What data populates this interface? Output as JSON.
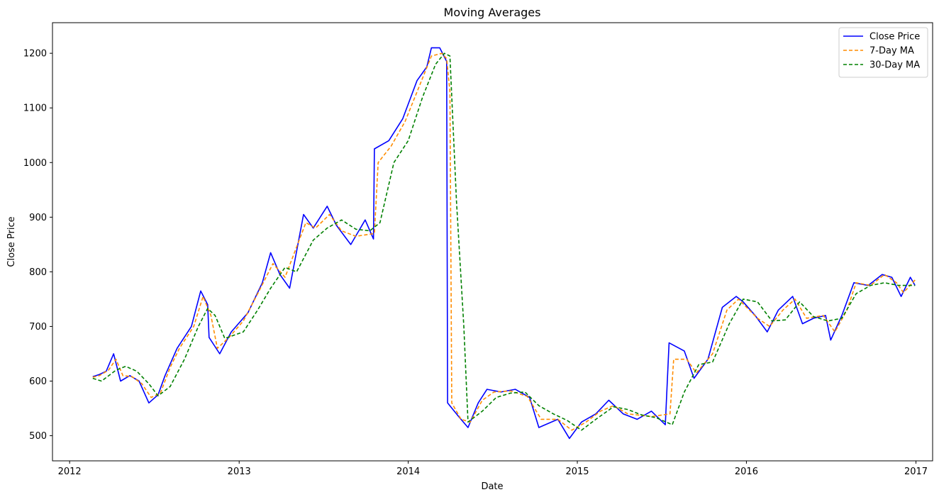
{
  "chart_data": {
    "type": "line",
    "title": "Moving Averages",
    "xlabel": "Date",
    "ylabel": "Close Price",
    "xlim": [
      "2011-11-25",
      "2017-02-06"
    ],
    "ylim": [
      454,
      1256
    ],
    "x_ticks": [
      "2012",
      "2013",
      "2014",
      "2015",
      "2016",
      "2017"
    ],
    "y_ticks": [
      500,
      600,
      700,
      800,
      900,
      1000,
      1100,
      1200
    ],
    "grid": false,
    "legend_position": "top-right",
    "series": [
      {
        "name": "Close Price",
        "color": "#0000ff",
        "style": "solid",
        "points": [
          [
            "2012-02-20",
            608
          ],
          [
            "2012-03-05",
            612
          ],
          [
            "2012-03-20",
            618
          ],
          [
            "2012-04-05",
            650
          ],
          [
            "2012-04-20",
            600
          ],
          [
            "2012-05-10",
            610
          ],
          [
            "2012-05-30",
            600
          ],
          [
            "2012-06-20",
            560
          ],
          [
            "2012-07-10",
            575
          ],
          [
            "2012-07-25",
            610
          ],
          [
            "2012-08-20",
            660
          ],
          [
            "2012-09-20",
            700
          ],
          [
            "2012-10-10",
            765
          ],
          [
            "2012-10-25",
            740
          ],
          [
            "2012-10-28",
            680
          ],
          [
            "2012-11-20",
            650
          ],
          [
            "2012-12-15",
            690
          ],
          [
            "2013-01-20",
            725
          ],
          [
            "2013-02-20",
            780
          ],
          [
            "2013-03-10",
            835
          ],
          [
            "2013-03-30",
            795
          ],
          [
            "2013-04-20",
            770
          ],
          [
            "2013-05-20",
            905
          ],
          [
            "2013-06-10",
            880
          ],
          [
            "2013-07-10",
            920
          ],
          [
            "2013-07-30",
            885
          ],
          [
            "2013-08-30",
            850
          ],
          [
            "2013-09-30",
            895
          ],
          [
            "2013-10-18",
            860
          ],
          [
            "2013-10-20",
            1025
          ],
          [
            "2013-11-20",
            1040
          ],
          [
            "2013-12-20",
            1080
          ],
          [
            "2014-01-20",
            1150
          ],
          [
            "2014-02-10",
            1175
          ],
          [
            "2014-02-20",
            1210
          ],
          [
            "2014-03-10",
            1210
          ],
          [
            "2014-03-25",
            1185
          ],
          [
            "2014-03-27",
            560
          ],
          [
            "2014-04-20",
            535
          ],
          [
            "2014-05-10",
            515
          ],
          [
            "2014-06-01",
            560
          ],
          [
            "2014-06-20",
            585
          ],
          [
            "2014-07-20",
            580
          ],
          [
            "2014-08-20",
            585
          ],
          [
            "2014-09-20",
            570
          ],
          [
            "2014-10-10",
            515
          ],
          [
            "2014-11-20",
            530
          ],
          [
            "2014-12-15",
            495
          ],
          [
            "2015-01-10",
            525
          ],
          [
            "2015-02-10",
            540
          ],
          [
            "2015-03-10",
            565
          ],
          [
            "2015-04-10",
            540
          ],
          [
            "2015-05-10",
            530
          ],
          [
            "2015-06-10",
            545
          ],
          [
            "2015-07-10",
            520
          ],
          [
            "2015-07-18",
            670
          ],
          [
            "2015-08-20",
            655
          ],
          [
            "2015-09-10",
            605
          ],
          [
            "2015-10-10",
            640
          ],
          [
            "2015-11-10",
            735
          ],
          [
            "2015-12-10",
            755
          ],
          [
            "2015-12-25",
            745
          ],
          [
            "2016-01-20",
            720
          ],
          [
            "2016-02-15",
            690
          ],
          [
            "2016-03-10",
            730
          ],
          [
            "2016-04-10",
            755
          ],
          [
            "2016-05-01",
            705
          ],
          [
            "2016-05-25",
            715
          ],
          [
            "2016-06-20",
            720
          ],
          [
            "2016-07-01",
            675
          ],
          [
            "2016-07-25",
            720
          ],
          [
            "2016-08-20",
            780
          ],
          [
            "2016-09-20",
            775
          ],
          [
            "2016-10-20",
            795
          ],
          [
            "2016-11-10",
            790
          ],
          [
            "2016-11-30",
            755
          ],
          [
            "2016-12-20",
            790
          ],
          [
            "2016-12-30",
            775
          ]
        ]
      },
      {
        "name": "7-Day MA",
        "color": "#ff8c00",
        "style": "dashed",
        "points": [
          [
            "2012-02-20",
            607
          ],
          [
            "2012-03-05",
            610
          ],
          [
            "2012-03-25",
            620
          ],
          [
            "2012-04-10",
            640
          ],
          [
            "2012-04-25",
            610
          ],
          [
            "2012-05-15",
            608
          ],
          [
            "2012-06-05",
            595
          ],
          [
            "2012-06-25",
            570
          ],
          [
            "2012-07-15",
            578
          ],
          [
            "2012-08-05",
            625
          ],
          [
            "2012-08-25",
            660
          ],
          [
            "2012-09-25",
            700
          ],
          [
            "2012-10-15",
            755
          ],
          [
            "2012-11-01",
            720
          ],
          [
            "2012-11-15",
            660
          ],
          [
            "2012-12-10",
            680
          ],
          [
            "2013-01-10",
            710
          ],
          [
            "2013-02-10",
            760
          ],
          [
            "2013-03-15",
            815
          ],
          [
            "2013-04-10",
            790
          ],
          [
            "2013-05-25",
            890
          ],
          [
            "2013-06-15",
            880
          ],
          [
            "2013-07-15",
            905
          ],
          [
            "2013-08-10",
            875
          ],
          [
            "2013-09-10",
            865
          ],
          [
            "2013-10-20",
            870
          ],
          [
            "2013-10-28",
            1000
          ],
          [
            "2013-11-25",
            1030
          ],
          [
            "2013-12-25",
            1075
          ],
          [
            "2014-01-25",
            1140
          ],
          [
            "2014-02-20",
            1195
          ],
          [
            "2014-03-15",
            1200
          ],
          [
            "2014-03-25",
            1190
          ],
          [
            "2014-04-01",
            1130
          ],
          [
            "2014-04-05",
            560
          ],
          [
            "2014-04-25",
            530
          ],
          [
            "2014-05-15",
            525
          ],
          [
            "2014-06-10",
            565
          ],
          [
            "2014-07-05",
            580
          ],
          [
            "2014-08-10",
            582
          ],
          [
            "2014-09-15",
            572
          ],
          [
            "2014-10-15",
            530
          ],
          [
            "2014-11-20",
            530
          ],
          [
            "2014-12-20",
            510
          ],
          [
            "2015-01-20",
            525
          ],
          [
            "2015-02-20",
            545
          ],
          [
            "2015-03-20",
            555
          ],
          [
            "2015-04-20",
            540
          ],
          [
            "2015-06-10",
            535
          ],
          [
            "2015-07-20",
            540
          ],
          [
            "2015-07-28",
            640
          ],
          [
            "2015-08-25",
            640
          ],
          [
            "2015-09-15",
            615
          ],
          [
            "2015-10-20",
            650
          ],
          [
            "2015-11-20",
            730
          ],
          [
            "2015-12-15",
            750
          ],
          [
            "2016-01-25",
            715
          ],
          [
            "2016-02-20",
            700
          ],
          [
            "2016-03-20",
            730
          ],
          [
            "2016-04-15",
            750
          ],
          [
            "2016-05-10",
            715
          ],
          [
            "2016-06-15",
            720
          ],
          [
            "2016-07-10",
            690
          ],
          [
            "2016-08-05",
            730
          ],
          [
            "2016-08-25",
            780
          ],
          [
            "2016-09-25",
            775
          ],
          [
            "2016-10-25",
            795
          ],
          [
            "2016-11-20",
            780
          ],
          [
            "2016-12-05",
            762
          ],
          [
            "2016-12-30",
            785
          ]
        ]
      },
      {
        "name": "30-Day MA",
        "color": "#008000",
        "style": "dashed",
        "points": [
          [
            "2012-02-20",
            605
          ],
          [
            "2012-03-10",
            600
          ],
          [
            "2012-04-10",
            620
          ],
          [
            "2012-05-01",
            627
          ],
          [
            "2012-05-25",
            618
          ],
          [
            "2012-06-20",
            595
          ],
          [
            "2012-07-10",
            573
          ],
          [
            "2012-08-05",
            590
          ],
          [
            "2012-09-05",
            640
          ],
          [
            "2012-10-05",
            700
          ],
          [
            "2012-10-25",
            733
          ],
          [
            "2012-11-10",
            720
          ],
          [
            "2012-12-01",
            678
          ],
          [
            "2013-01-10",
            690
          ],
          [
            "2013-02-10",
            730
          ],
          [
            "2013-03-10",
            770
          ],
          [
            "2013-04-10",
            808
          ],
          [
            "2013-05-05",
            800
          ],
          [
            "2013-06-10",
            858
          ],
          [
            "2013-07-10",
            880
          ],
          [
            "2013-08-10",
            895
          ],
          [
            "2013-09-10",
            878
          ],
          [
            "2013-10-10",
            875
          ],
          [
            "2013-11-01",
            890
          ],
          [
            "2013-12-01",
            1000
          ],
          [
            "2014-01-01",
            1040
          ],
          [
            "2014-02-01",
            1120
          ],
          [
            "2014-03-01",
            1180
          ],
          [
            "2014-03-20",
            1200
          ],
          [
            "2014-04-01",
            1195
          ],
          [
            "2014-04-15",
            930
          ],
          [
            "2014-05-01",
            700
          ],
          [
            "2014-05-10",
            525
          ],
          [
            "2014-06-10",
            545
          ],
          [
            "2014-07-10",
            570
          ],
          [
            "2014-08-10",
            578
          ],
          [
            "2014-09-10",
            580
          ],
          [
            "2014-10-10",
            555
          ],
          [
            "2014-11-10",
            540
          ],
          [
            "2014-12-10",
            528
          ],
          [
            "2015-01-10",
            510
          ],
          [
            "2015-02-10",
            530
          ],
          [
            "2015-03-20",
            553
          ],
          [
            "2015-04-20",
            548
          ],
          [
            "2015-05-20",
            538
          ],
          [
            "2015-06-20",
            533
          ],
          [
            "2015-07-25",
            520
          ],
          [
            "2015-08-20",
            580
          ],
          [
            "2015-09-20",
            630
          ],
          [
            "2015-10-20",
            635
          ],
          [
            "2015-11-25",
            705
          ],
          [
            "2015-12-25",
            750
          ],
          [
            "2016-01-25",
            745
          ],
          [
            "2016-02-25",
            710
          ],
          [
            "2016-03-25",
            712
          ],
          [
            "2016-04-25",
            745
          ],
          [
            "2016-05-25",
            718
          ],
          [
            "2016-06-25",
            710
          ],
          [
            "2016-07-25",
            715
          ],
          [
            "2016-08-25",
            760
          ],
          [
            "2016-09-25",
            775
          ],
          [
            "2016-10-25",
            780
          ],
          [
            "2016-11-25",
            775
          ],
          [
            "2016-12-30",
            775
          ]
        ]
      }
    ]
  }
}
